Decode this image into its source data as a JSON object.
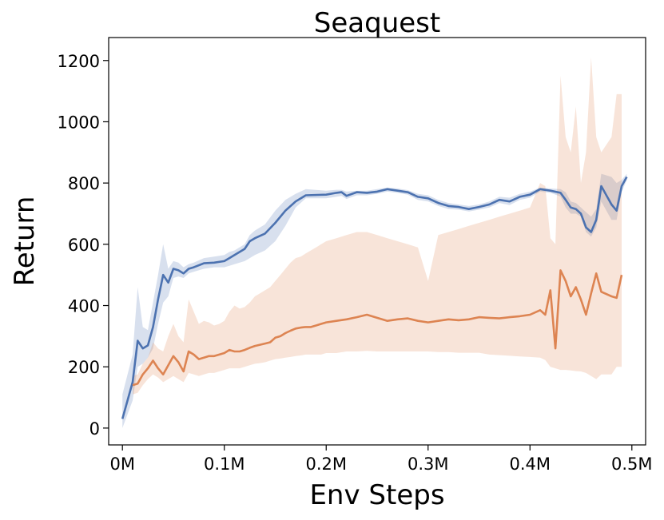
{
  "chart_data": {
    "type": "line",
    "title": "Seaquest",
    "xlabel": "Env Steps",
    "ylabel": "Return",
    "xlim": [
      -0.0135,
      0.5135
    ],
    "ylim": [
      -55,
      1275
    ],
    "x_ticks": [
      {
        "value": 0.0,
        "label": "0M"
      },
      {
        "value": 0.1,
        "label": "0.1M"
      },
      {
        "value": 0.2,
        "label": "0.2M"
      },
      {
        "value": 0.3,
        "label": "0.3M"
      },
      {
        "value": 0.4,
        "label": "0.4M"
      },
      {
        "value": 0.5,
        "label": "0.5M"
      }
    ],
    "y_ticks": [
      {
        "value": 0,
        "label": "0"
      },
      {
        "value": 200,
        "label": "200"
      },
      {
        "value": 400,
        "label": "400"
      },
      {
        "value": 600,
        "label": "600"
      },
      {
        "value": 800,
        "label": "800"
      },
      {
        "value": 1000,
        "label": "1000"
      },
      {
        "value": 1200,
        "label": "1200"
      }
    ],
    "grid": false,
    "legend": "none",
    "series": [
      {
        "color": "#4c72b0",
        "band_color": "#4c72b0",
        "x": [
          0.0,
          0.01,
          0.015,
          0.02,
          0.025,
          0.03,
          0.035,
          0.04,
          0.045,
          0.05,
          0.055,
          0.06,
          0.065,
          0.07,
          0.08,
          0.09,
          0.1,
          0.105,
          0.11,
          0.12,
          0.125,
          0.13,
          0.14,
          0.15,
          0.16,
          0.17,
          0.18,
          0.2,
          0.21,
          0.215,
          0.22,
          0.23,
          0.24,
          0.25,
          0.26,
          0.27,
          0.28,
          0.29,
          0.3,
          0.31,
          0.32,
          0.33,
          0.34,
          0.35,
          0.36,
          0.37,
          0.38,
          0.39,
          0.4,
          0.41,
          0.42,
          0.43,
          0.435,
          0.44,
          0.445,
          0.45,
          0.455,
          0.46,
          0.465,
          0.47,
          0.48,
          0.485,
          0.49,
          0.495
        ],
        "mean": [
          30,
          150,
          285,
          260,
          270,
          330,
          420,
          500,
          475,
          520,
          515,
          505,
          520,
          525,
          538,
          540,
          545,
          555,
          565,
          585,
          610,
          620,
          635,
          670,
          710,
          740,
          760,
          762,
          768,
          770,
          758,
          770,
          768,
          772,
          780,
          775,
          770,
          755,
          750,
          735,
          725,
          722,
          715,
          722,
          730,
          745,
          740,
          755,
          762,
          780,
          775,
          768,
          745,
          720,
          715,
          700,
          655,
          640,
          680,
          790,
          730,
          710,
          790,
          820
        ],
        "upper": [
          110,
          240,
          460,
          330,
          320,
          410,
          500,
          600,
          520,
          545,
          540,
          525,
          535,
          540,
          555,
          560,
          565,
          575,
          580,
          600,
          630,
          645,
          665,
          710,
          745,
          765,
          780,
          775,
          778,
          778,
          772,
          775,
          775,
          780,
          785,
          782,
          777,
          765,
          760,
          745,
          735,
          730,
          725,
          730,
          740,
          755,
          752,
          765,
          772,
          785,
          782,
          780,
          770,
          740,
          735,
          720,
          705,
          690,
          715,
          830,
          820,
          800,
          810,
          830
        ],
        "lower": [
          0,
          90,
          200,
          210,
          230,
          260,
          340,
          410,
          430,
          490,
          495,
          490,
          505,
          510,
          520,
          525,
          525,
          530,
          535,
          545,
          555,
          565,
          580,
          610,
          660,
          720,
          750,
          750,
          755,
          758,
          748,
          760,
          760,
          765,
          772,
          768,
          762,
          745,
          740,
          725,
          715,
          713,
          707,
          713,
          720,
          735,
          728,
          745,
          752,
          772,
          768,
          756,
          720,
          700,
          700,
          690,
          640,
          625,
          655,
          740,
          680,
          680,
          770,
          810
        ]
      },
      {
        "color": "#dd8452",
        "band_color": "#dd8452",
        "x": [
          0.01,
          0.015,
          0.02,
          0.025,
          0.03,
          0.035,
          0.04,
          0.045,
          0.05,
          0.055,
          0.06,
          0.065,
          0.07,
          0.075,
          0.08,
          0.085,
          0.09,
          0.095,
          0.1,
          0.105,
          0.11,
          0.115,
          0.12,
          0.125,
          0.13,
          0.135,
          0.14,
          0.145,
          0.15,
          0.155,
          0.16,
          0.165,
          0.17,
          0.175,
          0.18,
          0.185,
          0.19,
          0.195,
          0.2,
          0.21,
          0.22,
          0.23,
          0.24,
          0.25,
          0.26,
          0.27,
          0.28,
          0.29,
          0.3,
          0.31,
          0.32,
          0.33,
          0.34,
          0.35,
          0.36,
          0.37,
          0.38,
          0.39,
          0.4,
          0.41,
          0.415,
          0.42,
          0.425,
          0.43,
          0.435,
          0.44,
          0.445,
          0.45,
          0.455,
          0.46,
          0.465,
          0.47,
          0.48,
          0.485,
          0.49
        ],
        "mean": [
          140,
          145,
          175,
          195,
          220,
          195,
          175,
          205,
          235,
          215,
          185,
          250,
          240,
          225,
          230,
          235,
          235,
          240,
          245,
          255,
          250,
          250,
          255,
          262,
          268,
          272,
          276,
          280,
          295,
          300,
          310,
          318,
          325,
          328,
          330,
          330,
          335,
          340,
          345,
          350,
          355,
          362,
          370,
          360,
          350,
          355,
          358,
          350,
          345,
          350,
          355,
          352,
          355,
          362,
          360,
          358,
          362,
          365,
          370,
          385,
          370,
          450,
          260,
          515,
          480,
          430,
          460,
          420,
          370,
          440,
          505,
          445,
          430,
          425,
          500
        ],
        "upper": [
          170,
          175,
          210,
          230,
          280,
          260,
          250,
          300,
          340,
          300,
          280,
          420,
          380,
          340,
          350,
          345,
          335,
          340,
          350,
          380,
          400,
          390,
          395,
          410,
          430,
          440,
          450,
          460,
          480,
          500,
          520,
          540,
          555,
          560,
          570,
          580,
          590,
          600,
          610,
          620,
          630,
          640,
          640,
          630,
          620,
          610,
          600,
          590,
          480,
          630,
          640,
          650,
          660,
          670,
          680,
          690,
          700,
          710,
          720,
          800,
          790,
          620,
          600,
          1150,
          950,
          900,
          1050,
          800,
          900,
          1210,
          950,
          900,
          950,
          1090,
          1090
        ],
        "lower": [
          110,
          115,
          140,
          160,
          175,
          165,
          150,
          160,
          170,
          160,
          150,
          180,
          175,
          170,
          175,
          180,
          180,
          185,
          190,
          195,
          195,
          195,
          200,
          205,
          210,
          212,
          215,
          220,
          225,
          227,
          230,
          232,
          235,
          237,
          240,
          240,
          240,
          240,
          245,
          245,
          250,
          250,
          252,
          250,
          250,
          250,
          250,
          250,
          250,
          248,
          248,
          246,
          246,
          246,
          240,
          238,
          236,
          234,
          232,
          230,
          222,
          200,
          195,
          190,
          190,
          188,
          186,
          185,
          180,
          170,
          160,
          175,
          175,
          200,
          200
        ]
      }
    ]
  }
}
